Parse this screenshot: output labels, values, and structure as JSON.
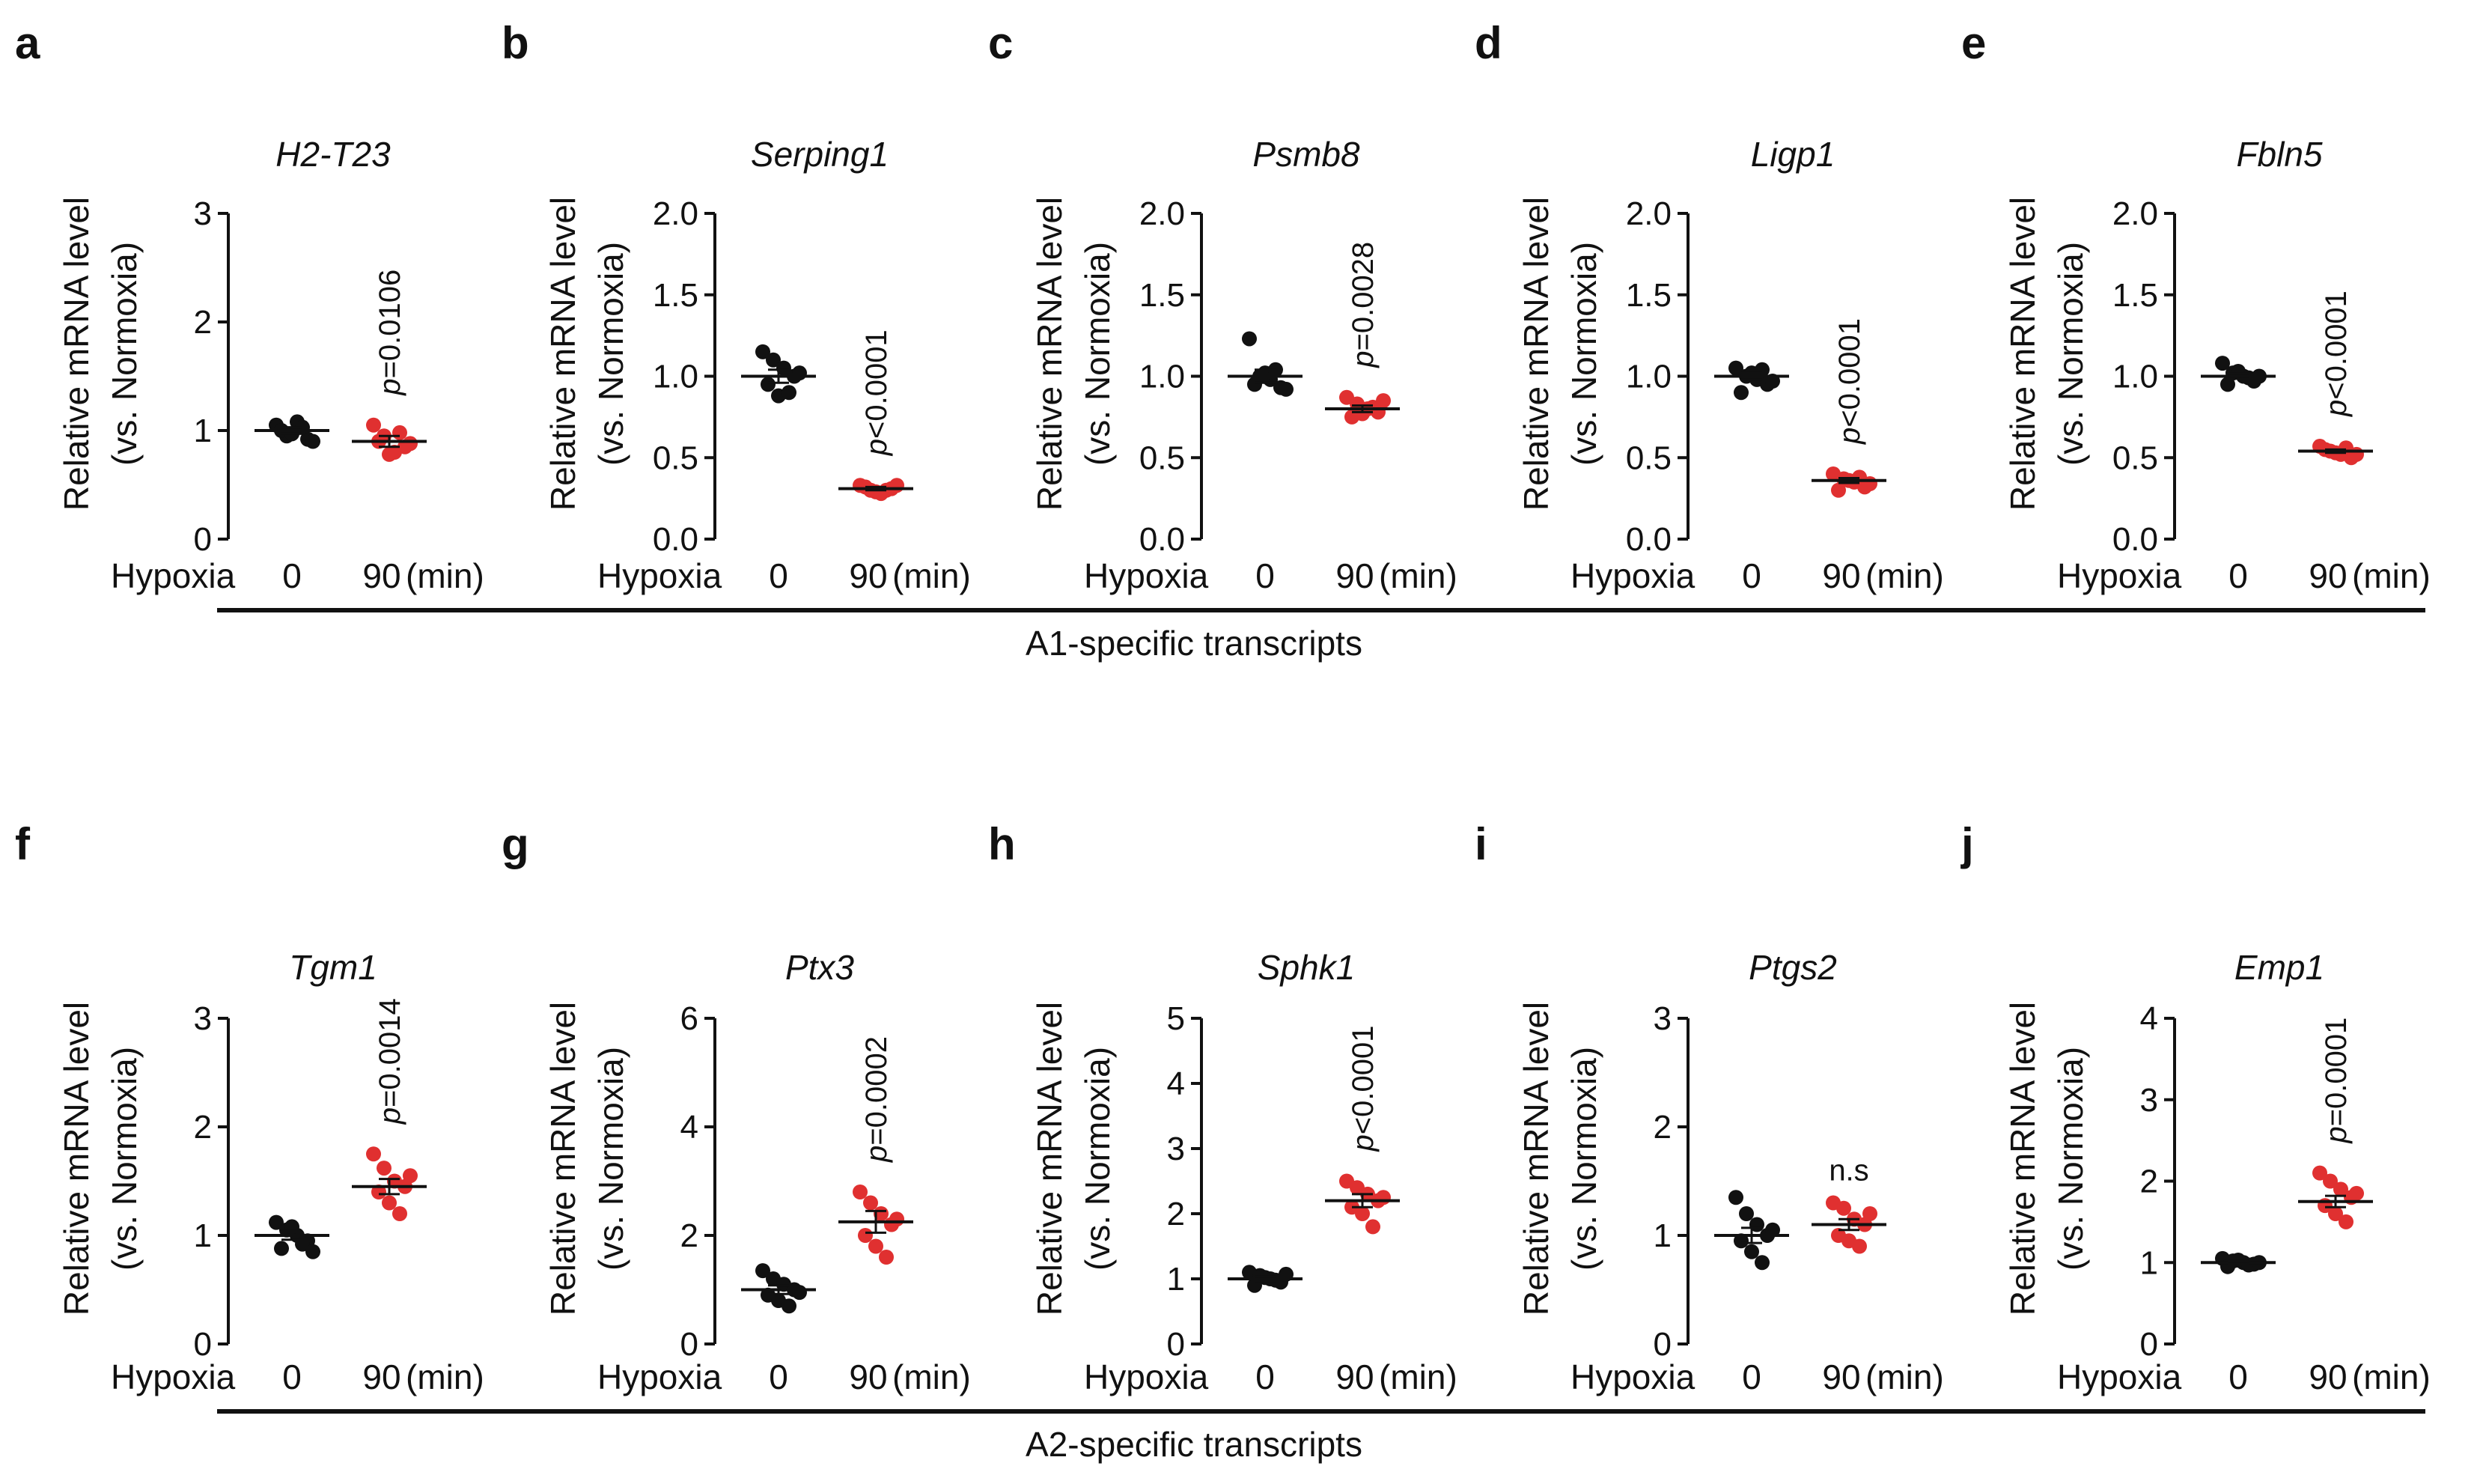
{
  "colors": {
    "control": "#111111",
    "hypoxia": "#e03030"
  },
  "y_axis_title_line1": "Relative mRNA level",
  "y_axis_title_line2": "(vs. Normoxia)",
  "x_axis_title": "Hypoxia",
  "x_unit": "(min)",
  "group_labels": {
    "top": "A1-specific transcripts",
    "bottom": "A2-specific transcripts"
  },
  "chart_data": [
    {
      "panel": "a",
      "gene": "H2-T23",
      "type": "scatter",
      "categories": [
        "0",
        "90"
      ],
      "ylim": [
        0,
        3
      ],
      "yticks": [
        "0",
        "1",
        "2",
        "3"
      ],
      "series": [
        {
          "name": "0",
          "mean": 1.0,
          "sem": 0.03,
          "values": [
            1.05,
            0.95,
            1.08,
            0.92,
            1.0,
            0.97,
            1.03,
            0.9
          ]
        },
        {
          "name": "90",
          "mean": 0.9,
          "sem": 0.05,
          "values": [
            1.05,
            0.95,
            0.8,
            0.85,
            0.9,
            0.78,
            0.98,
            0.88
          ]
        }
      ],
      "annotation": {
        "italic": "p",
        "rest": "=0.0106"
      }
    },
    {
      "panel": "b",
      "gene": "Serping1",
      "type": "scatter",
      "categories": [
        "0",
        "90"
      ],
      "ylim": [
        0,
        2
      ],
      "yticks": [
        "0.0",
        "0.5",
        "1.0",
        "1.5",
        "2.0"
      ],
      "series": [
        {
          "name": "0",
          "mean": 1.0,
          "sem": 0.04,
          "values": [
            1.15,
            1.1,
            1.05,
            1.0,
            0.95,
            0.88,
            0.9,
            1.02
          ]
        },
        {
          "name": "90",
          "mean": 0.31,
          "sem": 0.01,
          "values": [
            0.33,
            0.3,
            0.28,
            0.31,
            0.32,
            0.29,
            0.3,
            0.33
          ]
        }
      ],
      "annotation": {
        "italic": "p",
        "rest": "<0.0001"
      }
    },
    {
      "panel": "c",
      "gene": "Psmb8",
      "type": "scatter",
      "categories": [
        "0",
        "90"
      ],
      "ylim": [
        0,
        2
      ],
      "yticks": [
        "0.0",
        "0.5",
        "1.0",
        "1.5",
        "2.0"
      ],
      "series": [
        {
          "name": "0",
          "mean": 1.0,
          "sem": 0.04,
          "values": [
            1.23,
            1.0,
            0.98,
            0.93,
            0.95,
            1.02,
            1.04,
            0.92
          ]
        },
        {
          "name": "90",
          "mean": 0.8,
          "sem": 0.02,
          "values": [
            0.87,
            0.83,
            0.8,
            0.78,
            0.75,
            0.77,
            0.81,
            0.85
          ]
        }
      ],
      "annotation": {
        "italic": "p",
        "rest": "=0.0028"
      }
    },
    {
      "panel": "d",
      "gene": "Ligp1",
      "type": "scatter",
      "categories": [
        "0",
        "90"
      ],
      "ylim": [
        0,
        2
      ],
      "yticks": [
        "0.0",
        "0.5",
        "1.0",
        "1.5",
        "2.0"
      ],
      "series": [
        {
          "name": "0",
          "mean": 1.0,
          "sem": 0.02,
          "values": [
            1.05,
            1.0,
            0.98,
            0.95,
            0.9,
            1.02,
            1.04,
            0.97
          ]
        },
        {
          "name": "90",
          "mean": 0.36,
          "sem": 0.015,
          "values": [
            0.4,
            0.37,
            0.35,
            0.32,
            0.3,
            0.36,
            0.38,
            0.34
          ]
        }
      ],
      "annotation": {
        "italic": "p",
        "rest": "<0.0001"
      }
    },
    {
      "panel": "e",
      "gene": "Fbln5",
      "type": "scatter",
      "categories": [
        "0",
        "90"
      ],
      "ylim": [
        0,
        2
      ],
      "yticks": [
        "0.0",
        "0.5",
        "1.0",
        "1.5",
        "2.0"
      ],
      "series": [
        {
          "name": "0",
          "mean": 1.0,
          "sem": 0.015,
          "values": [
            1.08,
            1.02,
            1.0,
            0.97,
            0.95,
            1.03,
            0.99,
            1.0
          ]
        },
        {
          "name": "90",
          "mean": 0.54,
          "sem": 0.01,
          "values": [
            0.57,
            0.54,
            0.52,
            0.5,
            0.55,
            0.53,
            0.56,
            0.52
          ]
        }
      ],
      "annotation": {
        "italic": "p",
        "rest": "<0.0001"
      }
    },
    {
      "panel": "f",
      "gene": "Tgm1",
      "type": "scatter",
      "categories": [
        "0",
        "90"
      ],
      "ylim": [
        0,
        3
      ],
      "yticks": [
        "0",
        "1",
        "2",
        "3"
      ],
      "series": [
        {
          "name": "0",
          "mean": 1.0,
          "sem": 0.04,
          "values": [
            1.12,
            1.05,
            1.0,
            0.95,
            0.88,
            1.08,
            0.92,
            0.85
          ]
        },
        {
          "name": "90",
          "mean": 1.45,
          "sem": 0.07,
          "values": [
            1.75,
            1.62,
            1.5,
            1.45,
            1.4,
            1.3,
            1.2,
            1.55
          ]
        }
      ],
      "annotation": {
        "italic": "p",
        "rest": "=0.0014"
      }
    },
    {
      "panel": "g",
      "gene": "Ptx3",
      "type": "scatter",
      "categories": [
        "0",
        "90"
      ],
      "ylim": [
        0,
        6
      ],
      "yticks": [
        "0",
        "2",
        "4",
        "6"
      ],
      "series": [
        {
          "name": "0",
          "mean": 1.0,
          "sem": 0.08,
          "values": [
            1.35,
            1.2,
            1.1,
            1.0,
            0.9,
            0.8,
            0.7,
            0.95
          ]
        },
        {
          "name": "90",
          "mean": 2.25,
          "sem": 0.2,
          "values": [
            2.8,
            2.6,
            2.4,
            2.2,
            2.0,
            1.8,
            1.6,
            2.3
          ]
        }
      ],
      "annotation": {
        "italic": "p",
        "rest": "=0.0002"
      }
    },
    {
      "panel": "h",
      "gene": "Sphk1",
      "type": "scatter",
      "categories": [
        "0",
        "90"
      ],
      "ylim": [
        0,
        5
      ],
      "yticks": [
        "0",
        "1",
        "2",
        "3",
        "4",
        "5"
      ],
      "series": [
        {
          "name": "0",
          "mean": 1.0,
          "sem": 0.03,
          "values": [
            1.1,
            1.05,
            1.0,
            0.95,
            0.9,
            1.02,
            0.98,
            1.07
          ]
        },
        {
          "name": "90",
          "mean": 2.2,
          "sem": 0.1,
          "values": [
            2.5,
            2.4,
            2.3,
            2.2,
            2.1,
            2.0,
            1.8,
            2.25
          ]
        }
      ],
      "annotation": {
        "italic": "p",
        "rest": "<0.0001"
      }
    },
    {
      "panel": "i",
      "gene": "Ptgs2",
      "type": "scatter",
      "categories": [
        "0",
        "90"
      ],
      "ylim": [
        0,
        3
      ],
      "yticks": [
        "0",
        "1",
        "2",
        "3"
      ],
      "series": [
        {
          "name": "0",
          "mean": 1.0,
          "sem": 0.07,
          "values": [
            1.35,
            1.2,
            1.1,
            1.0,
            0.95,
            0.85,
            0.75,
            1.05
          ]
        },
        {
          "name": "90",
          "mean": 1.1,
          "sem": 0.05,
          "values": [
            1.3,
            1.25,
            1.15,
            1.1,
            1.0,
            0.95,
            0.9,
            1.2
          ]
        }
      ],
      "annotation": {
        "italic": "",
        "rest": "n.s"
      }
    },
    {
      "panel": "j",
      "gene": "Emp1",
      "type": "scatter",
      "categories": [
        "0",
        "90"
      ],
      "ylim": [
        0,
        4
      ],
      "yticks": [
        "0",
        "1",
        "2",
        "3",
        "4"
      ],
      "series": [
        {
          "name": "0",
          "mean": 1.0,
          "sem": 0.02,
          "values": [
            1.05,
            1.02,
            1.0,
            0.98,
            0.95,
            1.03,
            0.97,
            1.0
          ]
        },
        {
          "name": "90",
          "mean": 1.75,
          "sem": 0.07,
          "values": [
            2.1,
            2.0,
            1.9,
            1.8,
            1.7,
            1.6,
            1.5,
            1.85
          ]
        }
      ],
      "annotation": {
        "italic": "p",
        "rest": "=0.0001"
      }
    }
  ]
}
